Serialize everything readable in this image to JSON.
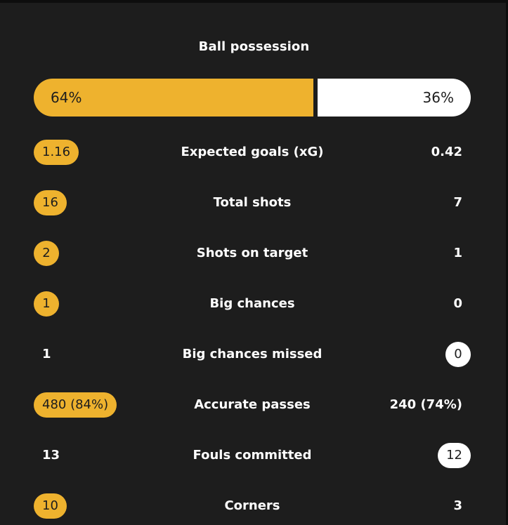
{
  "colors": {
    "background": "#1d1d1d",
    "home_accent": "#eeb22e",
    "away_accent": "#ffffff"
  },
  "possession": {
    "title": "Ball possession",
    "home": "64%",
    "away": "36%",
    "home_fraction": 0.64
  },
  "stats": [
    {
      "label": "Expected goals (xG)",
      "home": "1.16",
      "away": "0.42",
      "highlight": "home"
    },
    {
      "label": "Total shots",
      "home": "16",
      "away": "7",
      "highlight": "home"
    },
    {
      "label": "Shots on target",
      "home": "2",
      "away": "1",
      "highlight": "home"
    },
    {
      "label": "Big chances",
      "home": "1",
      "away": "0",
      "highlight": "home"
    },
    {
      "label": "Big chances missed",
      "home": "1",
      "away": "0",
      "highlight": "away"
    },
    {
      "label": "Accurate passes",
      "home": "480 (84%)",
      "away": "240 (74%)",
      "highlight": "home"
    },
    {
      "label": "Fouls committed",
      "home": "13",
      "away": "12",
      "highlight": "away"
    },
    {
      "label": "Corners",
      "home": "10",
      "away": "3",
      "highlight": "home"
    }
  ]
}
